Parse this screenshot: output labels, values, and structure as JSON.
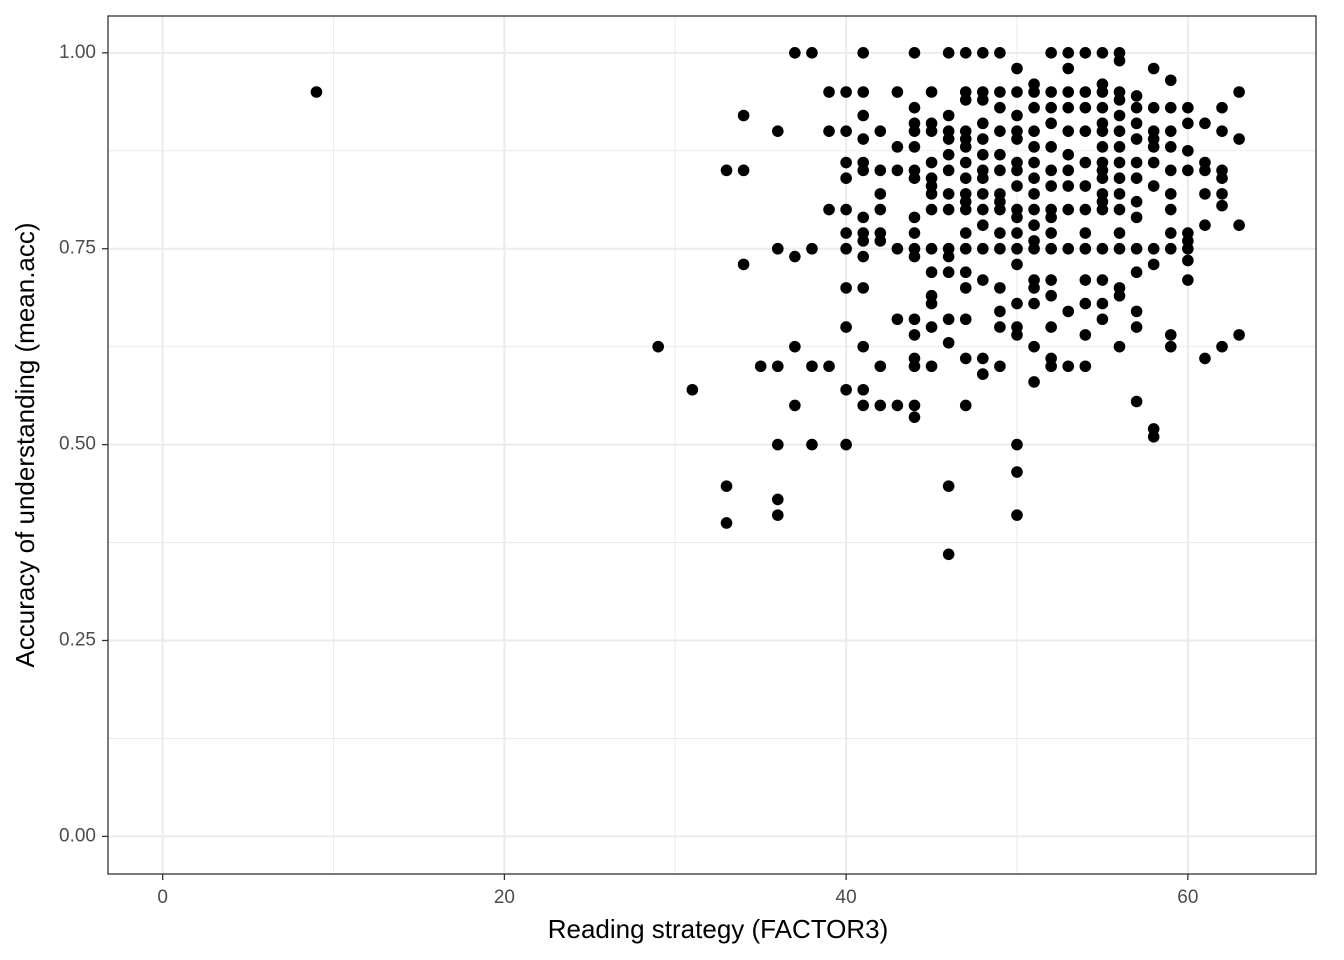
{
  "chart_data": {
    "type": "scatter",
    "x_label": "Reading strategy (FACTOR3)",
    "y_label": "Accuracy of understanding (mean.acc)",
    "xlim": [
      -3.2,
      67.5
    ],
    "ylim": [
      -0.048,
      1.047
    ],
    "xticks": [
      0,
      20,
      40,
      60
    ],
    "yticks": [
      {
        "value": 0,
        "label": "0.00"
      },
      {
        "value": 0.25,
        "label": "0.25"
      },
      {
        "value": 0.5,
        "label": "0.50"
      },
      {
        "value": 0.75,
        "label": "0.75"
      },
      {
        "value": 1,
        "label": "1.00"
      }
    ],
    "x_minor_grid": [
      10,
      30,
      50
    ],
    "y_minor_grid": [
      0.125,
      0.375,
      0.625,
      0.875
    ],
    "grid": true,
    "color": "#000000",
    "x": [
      9,
      29,
      31,
      33,
      33,
      33,
      34,
      34,
      34,
      35,
      36,
      36,
      36,
      36,
      36,
      36,
      37,
      37,
      37,
      37,
      38,
      38,
      38,
      38,
      39,
      39,
      39,
      39,
      40,
      40,
      40,
      40,
      40,
      40,
      40,
      40,
      40,
      40,
      40,
      41,
      41,
      41,
      41,
      41,
      41,
      41,
      41,
      41,
      41,
      41,
      41,
      41,
      41,
      42,
      42,
      42,
      42,
      42,
      42,
      42,
      42,
      43,
      43,
      43,
      43,
      43,
      43,
      44,
      44,
      44,
      44,
      44,
      44,
      44,
      44,
      44,
      44,
      44,
      44,
      44,
      44,
      44,
      44,
      44,
      45,
      45,
      45,
      45,
      45,
      45,
      45,
      45,
      45,
      45,
      45,
      45,
      45,
      45,
      46,
      46,
      46,
      46,
      46,
      46,
      46,
      46,
      46,
      46,
      46,
      46,
      46,
      46,
      46,
      47,
      47,
      47,
      47,
      47,
      47,
      47,
      47,
      47,
      47,
      47,
      47,
      47,
      47,
      47,
      47,
      47,
      47,
      48,
      48,
      48,
      48,
      48,
      48,
      48,
      48,
      48,
      48,
      48,
      48,
      48,
      48,
      48,
      49,
      49,
      49,
      49,
      49,
      49,
      49,
      49,
      49,
      49,
      49,
      49,
      49,
      49,
      49,
      50,
      50,
      50,
      50,
      50,
      50,
      50,
      50,
      50,
      50,
      50,
      50,
      50,
      50,
      50,
      50,
      50,
      50,
      50,
      51,
      51,
      51,
      51,
      51,
      51,
      51,
      51,
      51,
      51,
      51,
      51,
      51,
      51,
      51,
      51,
      51,
      52,
      52,
      52,
      52,
      52,
      52,
      52,
      52,
      52,
      52,
      52,
      52,
      52,
      52,
      52,
      52,
      53,
      53,
      53,
      53,
      53,
      53,
      53,
      53,
      53,
      53,
      53,
      53,
      54,
      54,
      54,
      54,
      54,
      54,
      54,
      54,
      54,
      54,
      54,
      54,
      54,
      55,
      55,
      55,
      55,
      55,
      55,
      55,
      55,
      55,
      55,
      55,
      55,
      55,
      55,
      55,
      55,
      55,
      56,
      56,
      56,
      56,
      56,
      56,
      56,
      56,
      56,
      56,
      56,
      56,
      56,
      56,
      56,
      56,
      57,
      57,
      57,
      57,
      57,
      57,
      57,
      57,
      57,
      57,
      57,
      57,
      57,
      58,
      58,
      58,
      58,
      58,
      58,
      58,
      58,
      58,
      58,
      58,
      59,
      59,
      59,
      59,
      59,
      59,
      59,
      59,
      59,
      59,
      59,
      60,
      60,
      60,
      60,
      60,
      60,
      60,
      60,
      60,
      61,
      61,
      61,
      61,
      61,
      61,
      62,
      62,
      62,
      62,
      62,
      62,
      62,
      63,
      63,
      63,
      63
    ],
    "values": [
      0.95,
      0.625,
      0.57,
      0.85,
      0.447,
      0.4,
      0.85,
      0.92,
      0.73,
      0.6,
      0.9,
      0.75,
      0.6,
      0.5,
      0.43,
      0.41,
      1.0,
      0.74,
      0.625,
      0.55,
      1.0,
      0.75,
      0.6,
      0.5,
      0.95,
      0.9,
      0.8,
      0.6,
      0.95,
      0.9,
      0.86,
      0.84,
      0.8,
      0.77,
      0.75,
      0.7,
      0.65,
      0.57,
      0.5,
      1.0,
      0.95,
      0.92,
      0.89,
      0.86,
      0.85,
      0.79,
      0.77,
      0.76,
      0.74,
      0.7,
      0.625,
      0.57,
      0.55,
      0.9,
      0.85,
      0.82,
      0.8,
      0.77,
      0.76,
      0.6,
      0.55,
      0.95,
      0.88,
      0.85,
      0.75,
      0.66,
      0.55,
      1.0,
      0.93,
      0.91,
      0.9,
      0.88,
      0.85,
      0.84,
      0.79,
      0.77,
      0.75,
      0.74,
      0.66,
      0.64,
      0.61,
      0.6,
      0.55,
      0.535,
      0.95,
      0.91,
      0.9,
      0.86,
      0.84,
      0.83,
      0.82,
      0.8,
      0.75,
      0.72,
      0.69,
      0.68,
      0.65,
      0.6,
      1.0,
      0.92,
      0.9,
      0.89,
      0.87,
      0.85,
      0.82,
      0.8,
      0.75,
      0.74,
      0.72,
      0.66,
      0.63,
      0.447,
      0.36,
      1.0,
      0.95,
      0.94,
      0.9,
      0.89,
      0.88,
      0.86,
      0.84,
      0.82,
      0.81,
      0.8,
      0.77,
      0.75,
      0.72,
      0.7,
      0.66,
      0.61,
      0.55,
      1.0,
      0.95,
      0.94,
      0.91,
      0.89,
      0.87,
      0.85,
      0.84,
      0.82,
      0.8,
      0.78,
      0.75,
      0.71,
      0.61,
      0.59,
      1.0,
      0.95,
      0.93,
      0.9,
      0.87,
      0.85,
      0.82,
      0.81,
      0.8,
      0.77,
      0.75,
      0.7,
      0.67,
      0.65,
      0.6,
      0.98,
      0.95,
      0.92,
      0.9,
      0.89,
      0.86,
      0.85,
      0.83,
      0.8,
      0.79,
      0.77,
      0.75,
      0.73,
      0.68,
      0.65,
      0.64,
      0.5,
      0.465,
      0.41,
      0.96,
      0.95,
      0.93,
      0.9,
      0.88,
      0.86,
      0.84,
      0.82,
      0.8,
      0.78,
      0.76,
      0.75,
      0.71,
      0.7,
      0.68,
      0.625,
      0.58,
      1.0,
      0.95,
      0.93,
      0.91,
      0.88,
      0.85,
      0.83,
      0.8,
      0.79,
      0.77,
      0.75,
      0.71,
      0.69,
      0.65,
      0.61,
      0.6,
      1.0,
      0.98,
      0.95,
      0.93,
      0.9,
      0.87,
      0.85,
      0.83,
      0.8,
      0.75,
      0.67,
      0.6,
      1.0,
      0.95,
      0.93,
      0.9,
      0.86,
      0.83,
      0.8,
      0.77,
      0.75,
      0.71,
      0.68,
      0.64,
      0.6,
      1.0,
      0.96,
      0.95,
      0.93,
      0.91,
      0.9,
      0.88,
      0.86,
      0.85,
      0.84,
      0.82,
      0.81,
      0.8,
      0.75,
      0.71,
      0.68,
      0.66,
      1.0,
      0.99,
      0.95,
      0.94,
      0.92,
      0.9,
      0.88,
      0.86,
      0.84,
      0.82,
      0.8,
      0.77,
      0.75,
      0.7,
      0.69,
      0.625,
      0.945,
      0.93,
      0.91,
      0.89,
      0.86,
      0.84,
      0.81,
      0.79,
      0.75,
      0.72,
      0.67,
      0.65,
      0.555,
      0.98,
      0.93,
      0.9,
      0.89,
      0.88,
      0.86,
      0.83,
      0.75,
      0.73,
      0.52,
      0.51,
      0.965,
      0.93,
      0.9,
      0.88,
      0.85,
      0.82,
      0.8,
      0.77,
      0.75,
      0.64,
      0.625,
      0.93,
      0.91,
      0.875,
      0.85,
      0.77,
      0.76,
      0.75,
      0.735,
      0.71,
      0.91,
      0.86,
      0.85,
      0.82,
      0.78,
      0.61,
      0.93,
      0.9,
      0.85,
      0.84,
      0.82,
      0.805,
      0.625,
      0.95,
      0.89,
      0.78,
      0.64
    ]
  }
}
